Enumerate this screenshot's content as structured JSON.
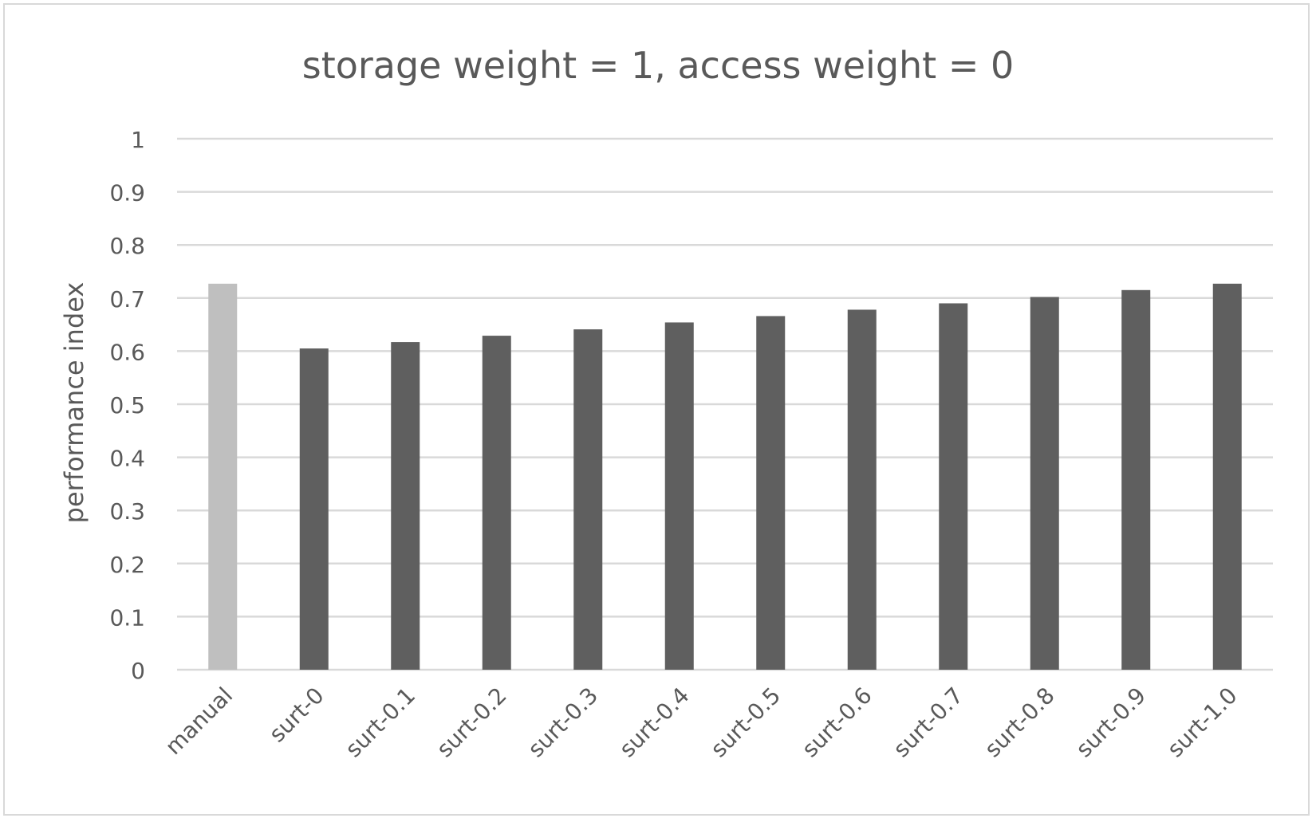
{
  "chart_data": {
    "type": "bar",
    "title": "storage weight = 1, access weight = 0",
    "xlabel": "",
    "ylabel": "performance index",
    "ylim": [
      0,
      1
    ],
    "yticks": [
      "0",
      "0.1",
      "0.2",
      "0.3",
      "0.4",
      "0.5",
      "0.6",
      "0.7",
      "0.8",
      "0.9",
      "1"
    ],
    "grid": true,
    "legend": "none",
    "categories": [
      "manual",
      "surt-0",
      "surt-0.1",
      "surt-0.2",
      "surt-0.3",
      "surt-0.4",
      "surt-0.5",
      "surt-0.6",
      "surt-0.7",
      "surt-0.8",
      "surt-0.9",
      "surt-1.0"
    ],
    "values": [
      0.727,
      0.605,
      0.617,
      0.629,
      0.641,
      0.654,
      0.666,
      0.678,
      0.69,
      0.702,
      0.715,
      0.727
    ],
    "colors": {
      "highlight_bar": "#bfbfbf",
      "bar": "#5f5f5f",
      "gridline": "#d9d9d9",
      "text": "#595959"
    }
  }
}
